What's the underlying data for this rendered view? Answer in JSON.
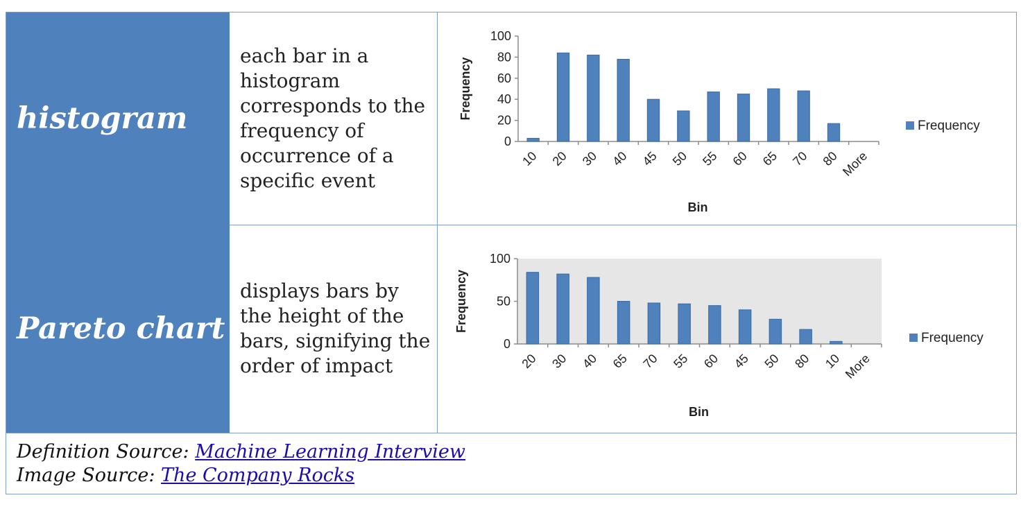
{
  "rows": [
    {
      "term": "histogram",
      "definition": "each bar in a histogram corresponds to the frequency of occurrence of a specific event"
    },
    {
      "term": "Pareto chart",
      "definition": "displays bars by the height of the bars, signifying the order of impact"
    }
  ],
  "footer": {
    "definition_prefix": "Definition Source: ",
    "definition_link": "Machine Learning Interview",
    "image_prefix": "Image Source: ",
    "image_link": "The Company Rocks"
  },
  "colors": {
    "bar": "#4f81bd",
    "term_bg": "#4f81bd",
    "pareto_plot_bg": "#e6e6e6"
  },
  "chart_data": [
    {
      "type": "bar",
      "title": "",
      "xlabel": "Bin",
      "ylabel": "Frequency",
      "ylim": [
        0,
        100
      ],
      "yticks": [
        0,
        20,
        40,
        60,
        80,
        100
      ],
      "categories": [
        "10",
        "20",
        "30",
        "40",
        "45",
        "50",
        "55",
        "60",
        "65",
        "70",
        "80",
        "More"
      ],
      "series": [
        {
          "name": "Frequency",
          "values": [
            3,
            84,
            82,
            78,
            40,
            29,
            47,
            45,
            50,
            48,
            17,
            0
          ]
        }
      ],
      "legend": "right",
      "plot_background": "white"
    },
    {
      "type": "bar",
      "title": "",
      "xlabel": "Bin",
      "ylabel": "Frequency",
      "ylim": [
        0,
        100
      ],
      "yticks": [
        0,
        50,
        100
      ],
      "categories": [
        "20",
        "30",
        "40",
        "65",
        "70",
        "55",
        "60",
        "45",
        "50",
        "80",
        "10",
        "More"
      ],
      "series": [
        {
          "name": "Frequency",
          "values": [
            84,
            82,
            78,
            50,
            48,
            47,
            45,
            40,
            29,
            17,
            3,
            0
          ]
        }
      ],
      "legend": "right",
      "plot_background": "gray"
    }
  ]
}
